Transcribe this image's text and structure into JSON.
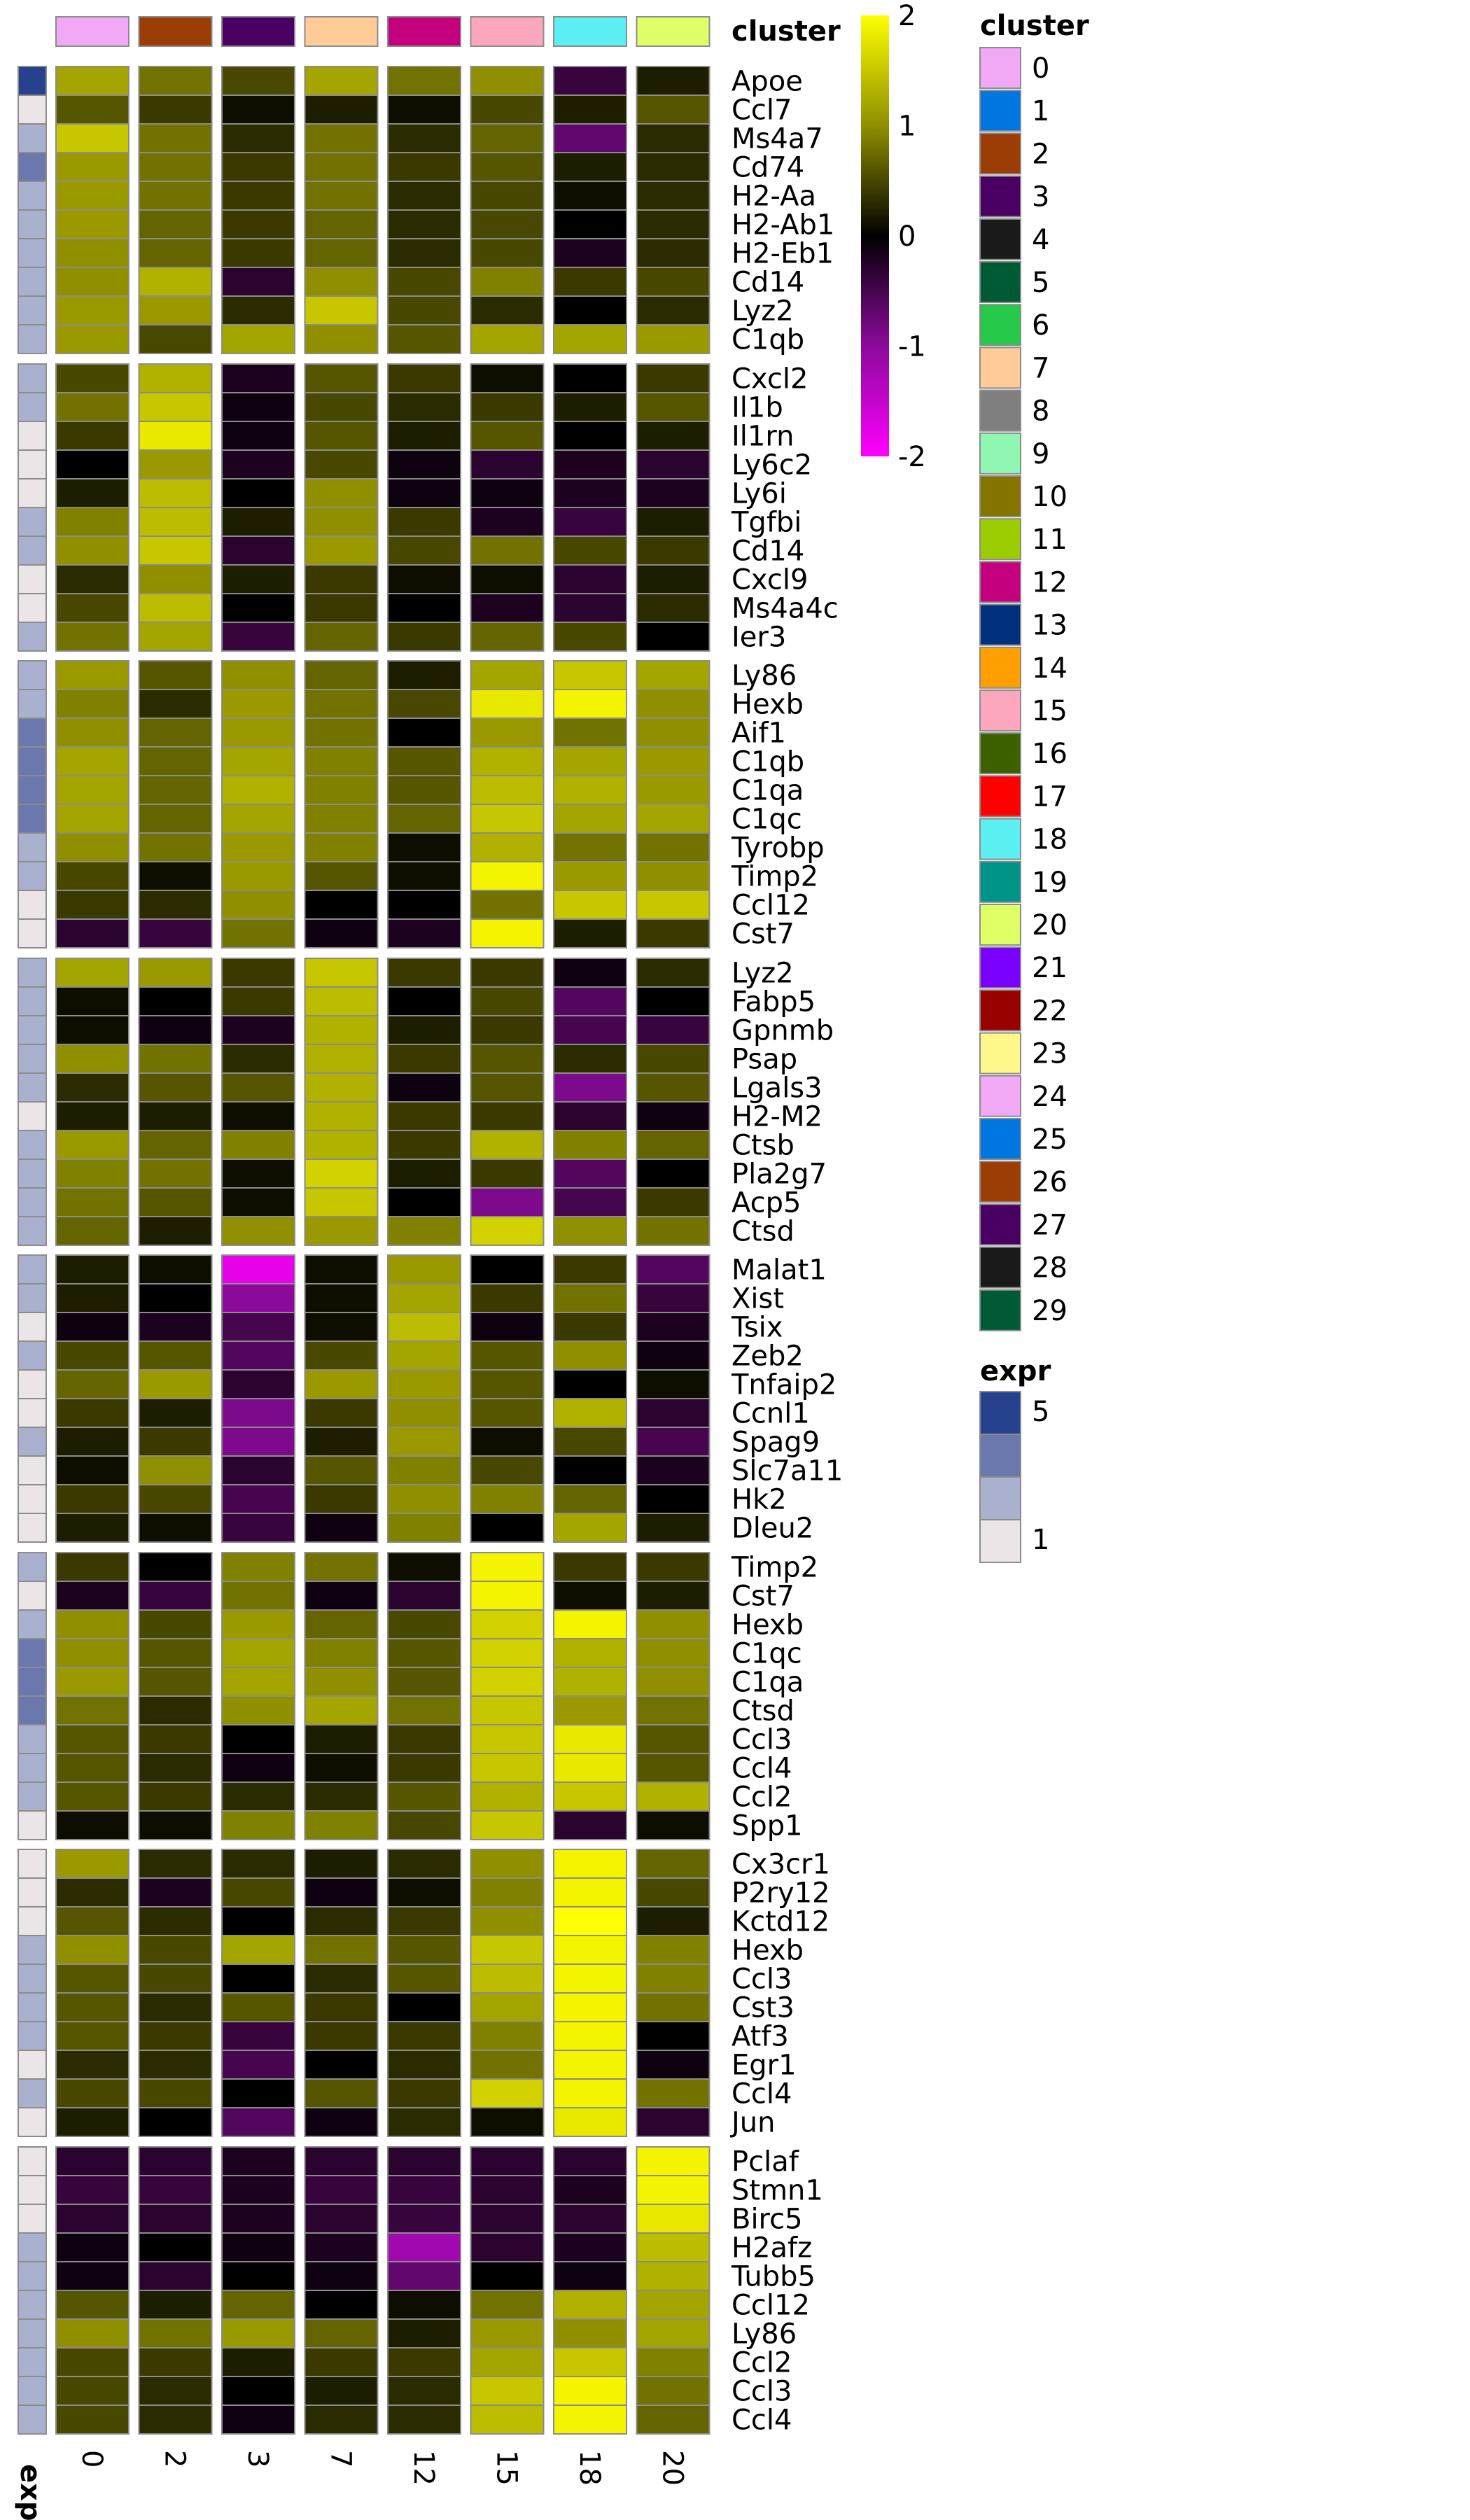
{
  "chart_data": {
    "type": "heatmap",
    "columns": [
      "0",
      "2",
      "3",
      "7",
      "12",
      "15",
      "18",
      "20"
    ],
    "column_annotation": {
      "title": "cluster",
      "colors": [
        "#f1a8f5",
        "#9c3d05",
        "#4a0062",
        "#ffcb96",
        "#c4007e",
        "#fca7be",
        "#5cf0f2",
        "#e0ff66"
      ]
    },
    "row_annotation": {
      "title": "expr"
    },
    "color_scale": {
      "title": "",
      "min": -2,
      "max": 2,
      "ticks": [
        "2",
        "1",
        "0",
        "-1",
        "-2"
      ],
      "stops": [
        {
          "v": -2,
          "c": "#ff00ff"
        },
        {
          "v": -1,
          "c": "#8b0a9b"
        },
        {
          "v": 0,
          "c": "#000000"
        },
        {
          "v": 1,
          "c": "#8f8f00"
        },
        {
          "v": 2,
          "c": "#ffff00"
        }
      ]
    },
    "expr_scale": {
      "title": "expr",
      "ticks": [
        "5",
        "1"
      ],
      "colors": [
        "#26418e",
        "#6a78ae",
        "#aab1cf",
        "#ebe5e7"
      ]
    },
    "cluster_legend": {
      "title": "cluster",
      "entries": [
        {
          "label": "0",
          "color": "#f1a8f5"
        },
        {
          "label": "1",
          "color": "#0077e0"
        },
        {
          "label": "2",
          "color": "#9c3d05"
        },
        {
          "label": "3",
          "color": "#4a0062"
        },
        {
          "label": "4",
          "color": "#1a1a1a"
        },
        {
          "label": "5",
          "color": "#005a36"
        },
        {
          "label": "6",
          "color": "#26c94a"
        },
        {
          "label": "7",
          "color": "#ffcb96"
        },
        {
          "label": "8",
          "color": "#7f7f7f"
        },
        {
          "label": "9",
          "color": "#90f7b2"
        },
        {
          "label": "10",
          "color": "#857400"
        },
        {
          "label": "11",
          "color": "#9bcc00"
        },
        {
          "label": "12",
          "color": "#c4007e"
        },
        {
          "label": "13",
          "color": "#002f7e"
        },
        {
          "label": "14",
          "color": "#ffa000"
        },
        {
          "label": "15",
          "color": "#fca7be"
        },
        {
          "label": "16",
          "color": "#3e6100"
        },
        {
          "label": "17",
          "color": "#ff0000"
        },
        {
          "label": "18",
          "color": "#5cf0f2"
        },
        {
          "label": "19",
          "color": "#009388"
        },
        {
          "label": "20",
          "color": "#e0ff66"
        },
        {
          "label": "21",
          "color": "#7a00ff"
        },
        {
          "label": "22",
          "color": "#990000"
        },
        {
          "label": "23",
          "color": "#fff78a"
        },
        {
          "label": "24",
          "color": "#f1a8f5"
        },
        {
          "label": "25",
          "color": "#0077e0"
        },
        {
          "label": "26",
          "color": "#9c3d05"
        },
        {
          "label": "27",
          "color": "#4a0062"
        },
        {
          "label": "28",
          "color": "#1a1a1a"
        },
        {
          "label": "29",
          "color": "#005a36"
        }
      ]
    },
    "blocks": [
      {
        "genes": [
          "Apoe",
          "Ccl7",
          "Ms4a7",
          "Cd74",
          "H2-Aa",
          "H2-Ab1",
          "H2-Eb1",
          "Cd14",
          "Lyz2",
          "C1qb"
        ],
        "expr": [
          5,
          1,
          2,
          4,
          3,
          3,
          3,
          2,
          3,
          3
        ],
        "values": [
          [
            1.2,
            0.8,
            0.5,
            1.2,
            0.8,
            1.0,
            -0.4,
            0.2
          ],
          [
            0.6,
            0.4,
            0.1,
            0.2,
            0.1,
            0.5,
            0.2,
            0.6
          ],
          [
            1.5,
            0.8,
            0.3,
            0.8,
            0.3,
            0.7,
            -0.7,
            0.3
          ],
          [
            1.1,
            0.8,
            0.4,
            0.8,
            0.4,
            0.6,
            0.2,
            0.3
          ],
          [
            1.1,
            0.8,
            0.4,
            0.8,
            0.3,
            0.5,
            0.1,
            0.3
          ],
          [
            1.1,
            0.7,
            0.4,
            0.7,
            0.3,
            0.5,
            0.0,
            0.3
          ],
          [
            1.0,
            0.7,
            0.4,
            0.7,
            0.3,
            0.5,
            -0.2,
            0.3
          ],
          [
            1.0,
            1.3,
            -0.3,
            1.0,
            0.5,
            0.9,
            0.4,
            0.5
          ],
          [
            1.1,
            1.1,
            0.3,
            1.5,
            0.5,
            0.3,
            0.0,
            0.3
          ],
          [
            1.1,
            0.5,
            1.2,
            1.0,
            0.6,
            1.2,
            1.2,
            1.1
          ]
        ]
      },
      {
        "genes": [
          "Cxcl2",
          "Il1b",
          "Il1rn",
          "Ly6c2",
          "Ly6i",
          "Tgfbi",
          "Cd14",
          "Cxcl9",
          "Ms4a4c",
          "Ier3"
        ],
        "expr": [
          2,
          2,
          1,
          1,
          1,
          2,
          2,
          1,
          1,
          2
        ],
        "values": [
          [
            0.5,
            1.3,
            -0.2,
            0.6,
            0.4,
            0.1,
            0.0,
            0.4
          ],
          [
            0.8,
            1.5,
            -0.1,
            0.5,
            0.3,
            0.4,
            0.2,
            0.6
          ],
          [
            0.4,
            1.8,
            -0.1,
            0.6,
            0.2,
            0.6,
            0.0,
            0.2
          ],
          [
            0.0,
            1.1,
            -0.2,
            0.5,
            -0.1,
            -0.3,
            -0.2,
            -0.3
          ],
          [
            0.2,
            1.4,
            0.0,
            1.0,
            -0.1,
            -0.1,
            -0.2,
            -0.2
          ],
          [
            0.9,
            1.4,
            0.2,
            1.0,
            0.4,
            -0.2,
            -0.4,
            0.2
          ],
          [
            1.0,
            1.5,
            -0.3,
            1.1,
            0.5,
            0.8,
            0.5,
            0.4
          ],
          [
            0.3,
            1.0,
            0.2,
            0.4,
            0.1,
            0.1,
            -0.3,
            0.2
          ],
          [
            0.5,
            1.4,
            0.0,
            0.4,
            0.0,
            -0.2,
            -0.3,
            0.3
          ],
          [
            0.8,
            1.2,
            -0.4,
            0.7,
            0.4,
            0.7,
            0.5,
            0.0
          ]
        ]
      },
      {
        "genes": [
          "Ly86",
          "Hexb",
          "Aif1",
          "C1qb",
          "C1qa",
          "C1qc",
          "Tyrobp",
          "Timp2",
          "Ccl12",
          "Cst7"
        ],
        "expr": [
          3,
          3,
          4,
          4,
          4,
          4,
          3,
          2,
          1,
          1
        ],
        "values": [
          [
            1.1,
            0.6,
            1.0,
            0.7,
            0.2,
            1.2,
            1.5,
            1.2
          ],
          [
            0.9,
            0.3,
            1.1,
            0.8,
            0.5,
            1.8,
            1.9,
            1.0
          ],
          [
            1.0,
            0.7,
            1.1,
            0.8,
            0.0,
            1.1,
            0.8,
            1.0
          ],
          [
            1.2,
            0.7,
            1.2,
            0.9,
            0.6,
            1.3,
            1.2,
            1.1
          ],
          [
            1.2,
            0.7,
            1.3,
            0.9,
            0.6,
            1.4,
            1.3,
            1.1
          ],
          [
            1.2,
            0.7,
            1.2,
            0.9,
            0.7,
            1.5,
            1.2,
            1.2
          ],
          [
            1.0,
            0.8,
            1.1,
            0.9,
            0.1,
            1.3,
            0.8,
            0.8
          ],
          [
            0.5,
            0.1,
            1.1,
            0.6,
            0.1,
            1.9,
            1.1,
            1.0
          ],
          [
            0.4,
            0.3,
            1.0,
            0.0,
            0.0,
            0.8,
            1.5,
            1.5
          ],
          [
            -0.3,
            -0.4,
            0.8,
            -0.1,
            -0.2,
            1.9,
            0.2,
            0.4
          ]
        ]
      },
      {
        "genes": [
          "Lyz2",
          "Fabp5",
          "Gpnmb",
          "Psap",
          "Lgals3",
          "H2-M2",
          "Ctsb",
          "Pla2g7",
          "Acp5",
          "Ctsd"
        ],
        "expr": [
          3,
          2,
          2,
          3,
          2,
          1,
          3,
          2,
          2,
          3
        ],
        "values": [
          [
            1.2,
            1.1,
            0.4,
            1.5,
            0.4,
            0.4,
            -0.1,
            0.3
          ],
          [
            0.1,
            0.0,
            0.4,
            1.4,
            0.0,
            0.5,
            -0.6,
            0.0
          ],
          [
            0.1,
            -0.1,
            -0.2,
            1.3,
            0.2,
            0.4,
            -0.5,
            -0.4
          ],
          [
            1.0,
            0.8,
            0.3,
            1.3,
            0.4,
            0.6,
            0.3,
            0.5
          ],
          [
            0.3,
            0.6,
            0.6,
            1.3,
            -0.1,
            0.6,
            -0.9,
            0.6
          ],
          [
            0.2,
            0.2,
            0.1,
            1.3,
            0.4,
            0.4,
            -0.3,
            -0.1
          ],
          [
            1.1,
            0.7,
            0.9,
            1.3,
            0.4,
            1.3,
            0.9,
            0.7
          ],
          [
            0.9,
            0.8,
            0.1,
            1.6,
            0.2,
            0.4,
            -0.6,
            0.0
          ],
          [
            0.8,
            0.6,
            0.1,
            1.5,
            0.0,
            -0.9,
            -0.5,
            0.4
          ],
          [
            0.7,
            0.2,
            1.0,
            1.1,
            0.9,
            1.6,
            1.0,
            0.8
          ]
        ]
      },
      {
        "genes": [
          "Malat1",
          "Xist",
          "Tsix",
          "Zeb2",
          "Tnfaip2",
          "Ccnl1",
          "Spag9",
          "Slc7a11",
          "Hk2",
          "Dleu2"
        ],
        "expr": [
          3,
          2,
          1,
          2,
          1,
          1,
          2,
          1,
          1,
          1
        ],
        "values": [
          [
            0.2,
            0.1,
            -1.8,
            0.1,
            1.1,
            0.0,
            0.4,
            -0.6
          ],
          [
            0.2,
            0.0,
            -1.0,
            0.1,
            1.2,
            0.4,
            0.8,
            -0.4
          ],
          [
            -0.1,
            -0.2,
            -0.5,
            0.1,
            1.4,
            -0.1,
            0.4,
            -0.2
          ],
          [
            0.5,
            0.6,
            -0.6,
            0.5,
            1.2,
            0.6,
            1.0,
            -0.1
          ],
          [
            0.7,
            1.1,
            -0.3,
            1.1,
            1.1,
            0.6,
            0.0,
            0.1
          ],
          [
            0.4,
            0.2,
            -0.9,
            0.4,
            1.0,
            0.6,
            1.3,
            -0.3
          ],
          [
            0.2,
            0.4,
            -0.9,
            0.2,
            1.1,
            0.1,
            0.5,
            -0.5
          ],
          [
            0.1,
            1.0,
            -0.3,
            0.6,
            0.9,
            0.5,
            0.0,
            -0.2
          ],
          [
            0.4,
            0.5,
            -0.5,
            0.4,
            1.0,
            0.9,
            0.7,
            0.0
          ],
          [
            0.2,
            0.1,
            -0.4,
            -0.1,
            0.9,
            0.0,
            1.2,
            0.2
          ]
        ]
      },
      {
        "genes": [
          "Timp2",
          "Cst7",
          "Hexb",
          "C1qc",
          "C1qa",
          "Ctsd",
          "Ccl3",
          "Ccl4",
          "Ccl2",
          "Spp1"
        ],
        "expr": [
          3,
          1,
          3,
          4,
          4,
          4,
          2,
          2,
          2,
          1
        ],
        "values": [
          [
            0.4,
            0.0,
            0.9,
            0.8,
            0.1,
            1.9,
            0.4,
            0.4
          ],
          [
            -0.2,
            -0.4,
            0.8,
            -0.1,
            -0.3,
            1.9,
            0.1,
            0.2
          ],
          [
            1.0,
            0.5,
            1.1,
            0.7,
            0.5,
            1.6,
            1.9,
            1.0
          ],
          [
            1.0,
            0.6,
            1.2,
            0.9,
            0.6,
            1.6,
            1.3,
            1.0
          ],
          [
            1.1,
            0.6,
            1.2,
            1.0,
            0.6,
            1.6,
            1.3,
            1.0
          ],
          [
            0.8,
            0.3,
            1.0,
            1.2,
            0.8,
            1.5,
            1.1,
            0.8
          ],
          [
            0.6,
            0.4,
            0.0,
            0.2,
            0.4,
            1.5,
            1.8,
            0.6
          ],
          [
            0.6,
            0.3,
            -0.1,
            0.1,
            0.4,
            1.5,
            1.8,
            0.6
          ],
          [
            0.6,
            0.4,
            0.3,
            0.3,
            0.6,
            1.3,
            1.5,
            1.3
          ],
          [
            0.1,
            0.1,
            0.9,
            0.9,
            0.5,
            1.5,
            -0.3,
            0.1
          ]
        ]
      },
      {
        "genes": [
          "Cx3cr1",
          "P2ry12",
          "Kctd12",
          "Hexb",
          "Ccl3",
          "Cst3",
          "Atf3",
          "Egr1",
          "Ccl4",
          "Jun"
        ],
        "expr": [
          1,
          1,
          1,
          2,
          2,
          3,
          2,
          1,
          2,
          1
        ],
        "values": [
          [
            1.1,
            0.3,
            0.3,
            0.2,
            0.3,
            1.0,
            1.9,
            0.7
          ],
          [
            0.3,
            -0.2,
            0.5,
            -0.1,
            0.1,
            0.9,
            1.9,
            0.5
          ],
          [
            0.6,
            0.3,
            0.0,
            0.3,
            0.4,
            1.0,
            2.0,
            0.2
          ],
          [
            1.0,
            0.5,
            1.2,
            0.8,
            0.6,
            1.5,
            1.9,
            0.9
          ],
          [
            0.6,
            0.5,
            0.0,
            0.3,
            0.6,
            1.4,
            1.9,
            0.9
          ],
          [
            0.6,
            0.3,
            0.6,
            0.4,
            0.0,
            1.2,
            1.9,
            0.8
          ],
          [
            0.6,
            0.4,
            -0.4,
            0.4,
            0.4,
            0.9,
            1.9,
            0.0
          ],
          [
            0.3,
            0.3,
            -0.5,
            0.0,
            0.3,
            0.8,
            1.9,
            -0.1
          ],
          [
            0.5,
            0.5,
            0.0,
            0.6,
            0.4,
            1.6,
            1.9,
            0.8
          ],
          [
            0.2,
            0.0,
            -0.6,
            -0.1,
            0.3,
            0.1,
            1.8,
            -0.3
          ]
        ]
      },
      {
        "genes": [
          "Pclaf",
          "Stmn1",
          "Birc5",
          "H2afz",
          "Tubb5",
          "Ccl12",
          "Ly86",
          "Ccl2",
          "Ccl3",
          "Ccl4"
        ],
        "expr": [
          1,
          1,
          1,
          2,
          2,
          2,
          3,
          2,
          2,
          3
        ],
        "values": [
          [
            -0.3,
            -0.3,
            -0.2,
            -0.3,
            -0.3,
            -0.3,
            -0.3,
            1.9
          ],
          [
            -0.4,
            -0.4,
            -0.2,
            -0.4,
            -0.4,
            -0.3,
            -0.2,
            1.9
          ],
          [
            -0.3,
            -0.3,
            -0.2,
            -0.3,
            -0.4,
            -0.3,
            -0.3,
            1.8
          ],
          [
            -0.1,
            0.0,
            -0.1,
            -0.2,
            -1.2,
            -0.3,
            -0.2,
            1.4
          ],
          [
            -0.1,
            -0.3,
            0.0,
            -0.1,
            -0.7,
            0.0,
            -0.1,
            1.3
          ],
          [
            0.6,
            0.2,
            0.7,
            0.0,
            0.1,
            0.8,
            1.3,
            1.2
          ],
          [
            1.0,
            0.8,
            1.1,
            0.7,
            0.2,
            1.1,
            1.0,
            1.2
          ],
          [
            0.5,
            0.4,
            0.2,
            0.4,
            0.4,
            1.2,
            1.5,
            0.9
          ],
          [
            0.5,
            0.3,
            0.0,
            0.2,
            0.3,
            1.5,
            1.9,
            0.8
          ],
          [
            0.5,
            0.3,
            -0.1,
            0.3,
            0.3,
            1.4,
            1.9,
            0.7
          ]
        ]
      }
    ]
  }
}
